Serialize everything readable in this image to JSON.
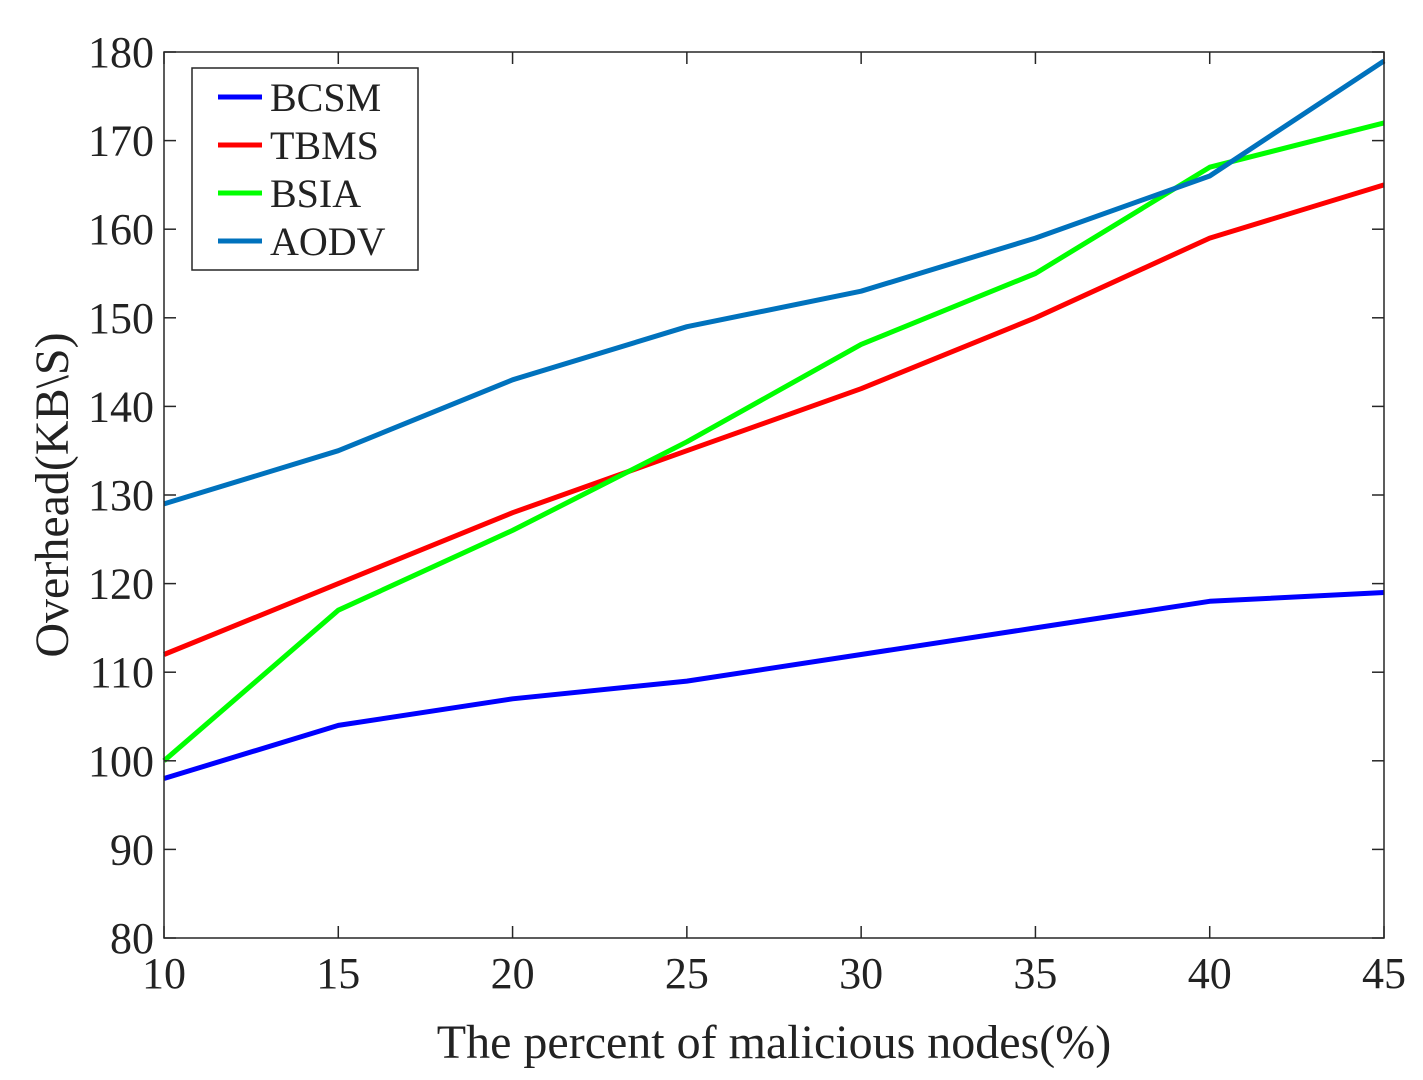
{
  "chart_data": {
    "type": "line",
    "title": "",
    "xlabel": "The percent of malicious nodes(%)",
    "ylabel": "Overhead(KB\\S)",
    "x": [
      10,
      15,
      20,
      25,
      30,
      35,
      40,
      45
    ],
    "xlim": [
      10,
      45
    ],
    "ylim": [
      80,
      180
    ],
    "xticks": [
      10,
      15,
      20,
      25,
      30,
      35,
      40,
      45
    ],
    "yticks": [
      80,
      90,
      100,
      110,
      120,
      130,
      140,
      150,
      160,
      170,
      180
    ],
    "grid": false,
    "legend_position": "top-left",
    "series": [
      {
        "name": "BCSM",
        "color": "#0000ff",
        "values": [
          98,
          104,
          107,
          109,
          112,
          115,
          118,
          119
        ]
      },
      {
        "name": "TBMS",
        "color": "#ff0000",
        "values": [
          112,
          120,
          128,
          135,
          142,
          150,
          159,
          165
        ]
      },
      {
        "name": "BSIA",
        "color": "#00ff00",
        "values": [
          100,
          117,
          126,
          136,
          147,
          155,
          167,
          172
        ]
      },
      {
        "name": "AODV",
        "color": "#0072bd",
        "values": [
          129,
          135,
          143,
          149,
          153,
          159,
          166,
          179
        ]
      }
    ]
  }
}
